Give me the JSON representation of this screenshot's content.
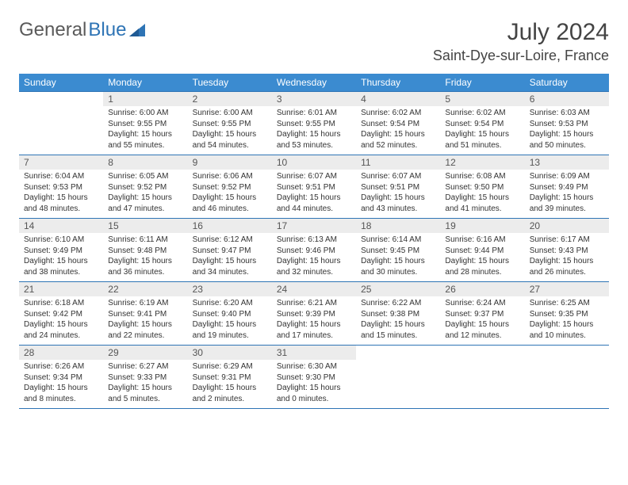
{
  "logo": {
    "text1": "General",
    "text2": "Blue"
  },
  "title": "July 2024",
  "location": "Saint-Dye-sur-Loire, France",
  "colors": {
    "header_bg": "#3b8bd0",
    "header_text": "#ffffff",
    "border": "#2e74b5",
    "daynum_bg": "#ececec",
    "body_text": "#333333",
    "logo_gray": "#5a5a5a",
    "logo_blue": "#2e74b5"
  },
  "typography": {
    "title_fontsize_pt": 22,
    "location_fontsize_pt": 13,
    "dayheader_fontsize_pt": 9,
    "daynum_fontsize_pt": 9,
    "body_fontsize_pt": 7.5
  },
  "layout": {
    "columns": 7,
    "rows": 5,
    "first_weekday": "Sunday",
    "month_start_col": 1,
    "days_in_month": 31
  },
  "weekdays": [
    "Sunday",
    "Monday",
    "Tuesday",
    "Wednesday",
    "Thursday",
    "Friday",
    "Saturday"
  ],
  "days": [
    {
      "n": 1,
      "sunrise": "6:00 AM",
      "sunset": "9:55 PM",
      "daylight": "15 hours and 55 minutes."
    },
    {
      "n": 2,
      "sunrise": "6:00 AM",
      "sunset": "9:55 PM",
      "daylight": "15 hours and 54 minutes."
    },
    {
      "n": 3,
      "sunrise": "6:01 AM",
      "sunset": "9:55 PM",
      "daylight": "15 hours and 53 minutes."
    },
    {
      "n": 4,
      "sunrise": "6:02 AM",
      "sunset": "9:54 PM",
      "daylight": "15 hours and 52 minutes."
    },
    {
      "n": 5,
      "sunrise": "6:02 AM",
      "sunset": "9:54 PM",
      "daylight": "15 hours and 51 minutes."
    },
    {
      "n": 6,
      "sunrise": "6:03 AM",
      "sunset": "9:53 PM",
      "daylight": "15 hours and 50 minutes."
    },
    {
      "n": 7,
      "sunrise": "6:04 AM",
      "sunset": "9:53 PM",
      "daylight": "15 hours and 48 minutes."
    },
    {
      "n": 8,
      "sunrise": "6:05 AM",
      "sunset": "9:52 PM",
      "daylight": "15 hours and 47 minutes."
    },
    {
      "n": 9,
      "sunrise": "6:06 AM",
      "sunset": "9:52 PM",
      "daylight": "15 hours and 46 minutes."
    },
    {
      "n": 10,
      "sunrise": "6:07 AM",
      "sunset": "9:51 PM",
      "daylight": "15 hours and 44 minutes."
    },
    {
      "n": 11,
      "sunrise": "6:07 AM",
      "sunset": "9:51 PM",
      "daylight": "15 hours and 43 minutes."
    },
    {
      "n": 12,
      "sunrise": "6:08 AM",
      "sunset": "9:50 PM",
      "daylight": "15 hours and 41 minutes."
    },
    {
      "n": 13,
      "sunrise": "6:09 AM",
      "sunset": "9:49 PM",
      "daylight": "15 hours and 39 minutes."
    },
    {
      "n": 14,
      "sunrise": "6:10 AM",
      "sunset": "9:49 PM",
      "daylight": "15 hours and 38 minutes."
    },
    {
      "n": 15,
      "sunrise": "6:11 AM",
      "sunset": "9:48 PM",
      "daylight": "15 hours and 36 minutes."
    },
    {
      "n": 16,
      "sunrise": "6:12 AM",
      "sunset": "9:47 PM",
      "daylight": "15 hours and 34 minutes."
    },
    {
      "n": 17,
      "sunrise": "6:13 AM",
      "sunset": "9:46 PM",
      "daylight": "15 hours and 32 minutes."
    },
    {
      "n": 18,
      "sunrise": "6:14 AM",
      "sunset": "9:45 PM",
      "daylight": "15 hours and 30 minutes."
    },
    {
      "n": 19,
      "sunrise": "6:16 AM",
      "sunset": "9:44 PM",
      "daylight": "15 hours and 28 minutes."
    },
    {
      "n": 20,
      "sunrise": "6:17 AM",
      "sunset": "9:43 PM",
      "daylight": "15 hours and 26 minutes."
    },
    {
      "n": 21,
      "sunrise": "6:18 AM",
      "sunset": "9:42 PM",
      "daylight": "15 hours and 24 minutes."
    },
    {
      "n": 22,
      "sunrise": "6:19 AM",
      "sunset": "9:41 PM",
      "daylight": "15 hours and 22 minutes."
    },
    {
      "n": 23,
      "sunrise": "6:20 AM",
      "sunset": "9:40 PM",
      "daylight": "15 hours and 19 minutes."
    },
    {
      "n": 24,
      "sunrise": "6:21 AM",
      "sunset": "9:39 PM",
      "daylight": "15 hours and 17 minutes."
    },
    {
      "n": 25,
      "sunrise": "6:22 AM",
      "sunset": "9:38 PM",
      "daylight": "15 hours and 15 minutes."
    },
    {
      "n": 26,
      "sunrise": "6:24 AM",
      "sunset": "9:37 PM",
      "daylight": "15 hours and 12 minutes."
    },
    {
      "n": 27,
      "sunrise": "6:25 AM",
      "sunset": "9:35 PM",
      "daylight": "15 hours and 10 minutes."
    },
    {
      "n": 28,
      "sunrise": "6:26 AM",
      "sunset": "9:34 PM",
      "daylight": "15 hours and 8 minutes."
    },
    {
      "n": 29,
      "sunrise": "6:27 AM",
      "sunset": "9:33 PM",
      "daylight": "15 hours and 5 minutes."
    },
    {
      "n": 30,
      "sunrise": "6:29 AM",
      "sunset": "9:31 PM",
      "daylight": "15 hours and 2 minutes."
    },
    {
      "n": 31,
      "sunrise": "6:30 AM",
      "sunset": "9:30 PM",
      "daylight": "15 hours and 0 minutes."
    }
  ],
  "labels": {
    "sunrise": "Sunrise:",
    "sunset": "Sunset:",
    "daylight": "Daylight:"
  }
}
